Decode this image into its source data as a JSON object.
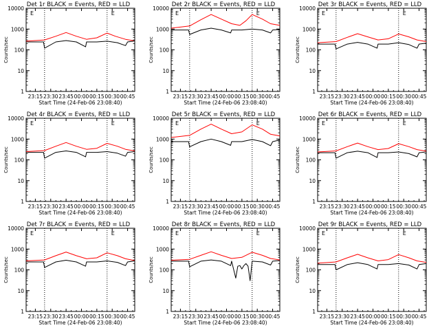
{
  "figure": {
    "background": "#ffffff",
    "colors": {
      "events": "#000000",
      "lld": "#ff0000",
      "axis": "#000000"
    }
  },
  "chart_data": [
    {
      "type": "line",
      "title": "Det 1r BLACK = Events, RED = LLD",
      "xlabel": "Start Time (24-Feb-06 23:08:40)",
      "ylabel": "Counts/sec",
      "yscale": "log",
      "ylim": [
        1,
        10000
      ],
      "yticks": [
        "1",
        "10",
        "100",
        "1000",
        "10000"
      ],
      "xticks": [
        "23:15",
        "23:30",
        "23:45",
        "00:00",
        "00:15",
        "00:30",
        "00:45"
      ],
      "time_min": [
        0,
        15,
        30,
        45,
        60,
        75,
        90
      ],
      "xlim": [
        -9,
        97
      ],
      "vlines": [
        9,
        70
      ],
      "marker_label": "E",
      "marker_t": 74,
      "series": [
        {
          "name": "LLD",
          "color": "#ff0000",
          "t": [
            -9,
            9,
            20,
            30,
            40,
            50,
            60,
            70,
            78,
            88,
            97
          ],
          "values": [
            260,
            300,
            450,
            680,
            450,
            320,
            380,
            640,
            450,
            320,
            270
          ]
        },
        {
          "name": "Events",
          "color": "#000000",
          "t": [
            -9,
            8,
            9,
            20,
            30,
            40,
            49,
            50,
            60,
            70,
            80,
            88,
            90,
            97
          ],
          "values": [
            240,
            240,
            120,
            240,
            280,
            240,
            140,
            240,
            240,
            260,
            220,
            160,
            240,
            270
          ]
        }
      ]
    },
    {
      "type": "line",
      "title": "Det 2r BLACK = Events, RED = LLD",
      "xlabel": "Start Time (24-Feb-06 23:08:40)",
      "ylabel": "Counts/sec",
      "yscale": "log",
      "ylim": [
        1,
        10000
      ],
      "yticks": [
        "1",
        "10",
        "100",
        "1000",
        "10000"
      ],
      "xticks": [
        "23:15",
        "23:30",
        "23:45",
        "00:00",
        "00:15",
        "00:30",
        "00:45"
      ],
      "time_min": [
        0,
        15,
        30,
        45,
        60,
        75,
        90
      ],
      "xlim": [
        -9,
        97
      ],
      "vlines": [
        9,
        70
      ],
      "marker_label": "E",
      "marker_t": 74,
      "series": [
        {
          "name": "LLD",
          "color": "#ff0000",
          "t": [
            -9,
            9,
            20,
            30,
            40,
            50,
            58,
            64,
            70,
            80,
            88,
            97
          ],
          "values": [
            1100,
            1400,
            2800,
            5000,
            3000,
            1800,
            1500,
            2500,
            5000,
            3000,
            1800,
            1500
          ]
        },
        {
          "name": "Events",
          "color": "#000000",
          "t": [
            -9,
            8,
            9,
            20,
            30,
            40,
            49,
            50,
            60,
            70,
            80,
            88,
            90,
            97
          ],
          "values": [
            900,
            900,
            550,
            900,
            1100,
            900,
            650,
            900,
            900,
            1000,
            900,
            650,
            900,
            950
          ]
        }
      ]
    },
    {
      "type": "line",
      "title": "Det 3r BLACK = Events, RED = LLD",
      "xlabel": "Start Time (24-Feb-06 23:08:40)",
      "ylabel": "Counts/sec",
      "yscale": "log",
      "ylim": [
        1,
        10000
      ],
      "yticks": [
        "1",
        "10",
        "100",
        "1000",
        "10000"
      ],
      "xticks": [
        "23:15",
        "23:30",
        "23:45",
        "00:00",
        "00:15",
        "00:30",
        "00:45"
      ],
      "time_min": [
        0,
        15,
        30,
        45,
        60,
        75,
        90
      ],
      "xlim": [
        -9,
        97
      ],
      "vlines": [
        9,
        70
      ],
      "marker_label": "E",
      "marker_t": 74,
      "series": [
        {
          "name": "LLD",
          "color": "#ff0000",
          "t": [
            -9,
            9,
            20,
            30,
            40,
            50,
            60,
            70,
            80,
            88,
            97
          ],
          "values": [
            220,
            250,
            400,
            600,
            420,
            300,
            340,
            580,
            420,
            300,
            250
          ]
        },
        {
          "name": "Events",
          "color": "#000000",
          "t": [
            -9,
            8,
            9,
            20,
            30,
            40,
            49,
            50,
            60,
            70,
            80,
            88,
            90,
            97
          ],
          "values": [
            190,
            190,
            110,
            190,
            230,
            190,
            120,
            190,
            190,
            220,
            180,
            120,
            190,
            210
          ]
        }
      ]
    },
    {
      "type": "line",
      "title": "Det 4r BLACK = Events, RED = LLD",
      "xlabel": "Start Time (24-Feb-06 23:08:40)",
      "ylabel": "Counts/sec",
      "yscale": "log",
      "ylim": [
        1,
        10000
      ],
      "yticks": [
        "1",
        "10",
        "100",
        "1000",
        "10000"
      ],
      "xticks": [
        "23:15",
        "23:30",
        "23:45",
        "00:00",
        "00:15",
        "00:30",
        "00:45"
      ],
      "time_min": [
        0,
        15,
        30,
        45,
        60,
        75,
        90
      ],
      "xlim": [
        -9,
        97
      ],
      "vlines": [
        9,
        70
      ],
      "marker_label": "E",
      "marker_t": 74,
      "series": [
        {
          "name": "LLD",
          "color": "#ff0000",
          "t": [
            -9,
            9,
            20,
            30,
            40,
            50,
            60,
            70,
            80,
            88,
            97
          ],
          "values": [
            250,
            280,
            450,
            680,
            450,
            320,
            360,
            620,
            450,
            320,
            270
          ]
        },
        {
          "name": "Events",
          "color": "#000000",
          "t": [
            -9,
            8,
            9,
            20,
            30,
            40,
            49,
            50,
            60,
            70,
            80,
            88,
            90,
            97
          ],
          "values": [
            230,
            230,
            120,
            230,
            270,
            230,
            140,
            230,
            230,
            250,
            210,
            150,
            230,
            250
          ]
        }
      ]
    },
    {
      "type": "line",
      "title": "Det 5r BLACK = Events, RED = LLD",
      "xlabel": "Start Time (24-Feb-06 23:08:40)",
      "ylabel": "Counts/sec",
      "yscale": "log",
      "ylim": [
        1,
        10000
      ],
      "yticks": [
        "1",
        "10",
        "100",
        "1000",
        "10000"
      ],
      "xticks": [
        "23:15",
        "23:30",
        "23:45",
        "00:00",
        "00:15",
        "00:30",
        "00:45"
      ],
      "time_min": [
        0,
        15,
        30,
        45,
        60,
        75,
        90
      ],
      "xlim": [
        -9,
        97
      ],
      "vlines": [
        9,
        70
      ],
      "marker_label": "E",
      "marker_t": 74,
      "series": [
        {
          "name": "LLD",
          "color": "#ff0000",
          "t": [
            -9,
            9,
            20,
            30,
            40,
            50,
            60,
            70,
            80,
            88,
            97
          ],
          "values": [
            1200,
            1500,
            3000,
            5200,
            3000,
            1800,
            2200,
            4800,
            3000,
            1700,
            1400
          ]
        },
        {
          "name": "Events",
          "color": "#000000",
          "t": [
            -9,
            8,
            9,
            20,
            30,
            40,
            49,
            50,
            60,
            70,
            80,
            88,
            90,
            97
          ],
          "values": [
            750,
            750,
            420,
            750,
            1000,
            750,
            500,
            750,
            750,
            950,
            750,
            480,
            750,
            900
          ]
        }
      ]
    },
    {
      "type": "line",
      "title": "Det 6r BLACK = Events, RED = LLD",
      "xlabel": "Start Time (24-Feb-06 23:08:40)",
      "ylabel": "Counts/sec",
      "yscale": "log",
      "ylim": [
        1,
        10000
      ],
      "yticks": [
        "1",
        "10",
        "100",
        "1000",
        "10000"
      ],
      "xticks": [
        "23:15",
        "23:30",
        "23:45",
        "00:00",
        "00:15",
        "00:30",
        "00:45"
      ],
      "time_min": [
        0,
        15,
        30,
        45,
        60,
        75,
        90
      ],
      "xlim": [
        -9,
        97
      ],
      "vlines": [
        9,
        70
      ],
      "marker_label": "E",
      "marker_t": 74,
      "series": [
        {
          "name": "LLD",
          "color": "#ff0000",
          "t": [
            -9,
            9,
            20,
            30,
            40,
            50,
            60,
            70,
            80,
            88,
            97
          ],
          "values": [
            240,
            270,
            430,
            640,
            430,
            310,
            350,
            600,
            430,
            310,
            260
          ]
        },
        {
          "name": "Events",
          "color": "#000000",
          "t": [
            -9,
            8,
            9,
            20,
            30,
            40,
            49,
            50,
            60,
            70,
            80,
            88,
            90,
            97
          ],
          "values": [
            220,
            220,
            120,
            220,
            260,
            220,
            130,
            220,
            220,
            240,
            200,
            140,
            220,
            240
          ]
        }
      ]
    },
    {
      "type": "line",
      "title": "Det 7r BLACK = Events, RED = LLD",
      "xlabel": "Start Time (24-Feb-06 23:08:40)",
      "ylabel": "Counts/sec",
      "yscale": "log",
      "ylim": [
        1,
        10000
      ],
      "yticks": [
        "1",
        "10",
        "100",
        "1000",
        "10000"
      ],
      "xticks": [
        "23:15",
        "23:30",
        "23:45",
        "00:00",
        "00:15",
        "00:30",
        "00:45"
      ],
      "time_min": [
        0,
        15,
        30,
        45,
        60,
        75,
        90
      ],
      "xlim": [
        -9,
        97
      ],
      "vlines": [
        9,
        70
      ],
      "marker_label": "E",
      "marker_t": 74,
      "series": [
        {
          "name": "LLD",
          "color": "#ff0000",
          "t": [
            -9,
            9,
            20,
            30,
            40,
            50,
            60,
            70,
            80,
            88,
            97
          ],
          "values": [
            270,
            300,
            480,
            720,
            480,
            340,
            380,
            660,
            480,
            340,
            280
          ]
        },
        {
          "name": "Events",
          "color": "#000000",
          "t": [
            -9,
            8,
            9,
            20,
            30,
            40,
            49,
            50,
            60,
            70,
            80,
            88,
            90,
            97
          ],
          "values": [
            240,
            240,
            130,
            240,
            290,
            240,
            150,
            240,
            240,
            270,
            230,
            160,
            240,
            270
          ]
        }
      ]
    },
    {
      "type": "line",
      "title": "Det 8r BLACK = Events, RED = LLD",
      "xlabel": "Start Time (24-Feb-06 23:08:40)",
      "ylabel": "Counts/sec",
      "yscale": "log",
      "ylim": [
        1,
        10000
      ],
      "yticks": [
        "1",
        "10",
        "100",
        "1000",
        "10000"
      ],
      "xticks": [
        "23:15",
        "23:30",
        "23:45",
        "00:00",
        "00:15",
        "00:30",
        "00:45"
      ],
      "time_min": [
        0,
        15,
        30,
        45,
        60,
        75,
        90
      ],
      "xlim": [
        -9,
        97
      ],
      "vlines": [
        9,
        70
      ],
      "marker_label": "E",
      "marker_t": 74,
      "series": [
        {
          "name": "LLD",
          "color": "#ff0000",
          "t": [
            -9,
            9,
            20,
            30,
            40,
            50,
            60,
            70,
            80,
            88,
            97
          ],
          "values": [
            290,
            320,
            500,
            740,
            500,
            350,
            400,
            700,
            500,
            350,
            300
          ]
        },
        {
          "name": "Events",
          "color": "#000000",
          "t": [
            -9,
            8,
            9,
            20,
            30,
            40,
            49,
            50,
            54,
            56,
            58,
            60,
            62,
            64,
            66,
            68,
            70,
            80,
            88,
            90,
            97
          ],
          "values": [
            260,
            260,
            140,
            260,
            300,
            260,
            160,
            260,
            40,
            150,
            160,
            110,
            160,
            200,
            150,
            30,
            260,
            240,
            170,
            260,
            280
          ]
        }
      ]
    },
    {
      "type": "line",
      "title": "Det 9r BLACK = Events, RED = LLD",
      "xlabel": "Start Time (24-Feb-06 23:08:40)",
      "ylabel": "Counts/sec",
      "yscale": "log",
      "ylim": [
        1,
        10000
      ],
      "yticks": [
        "1",
        "10",
        "100",
        "1000",
        "10000"
      ],
      "xticks": [
        "23:15",
        "23:30",
        "23:45",
        "00:00",
        "00:15",
        "00:30",
        "00:45"
      ],
      "time_min": [
        0,
        15,
        30,
        45,
        60,
        75,
        90
      ],
      "xlim": [
        -9,
        97
      ],
      "vlines": [
        9,
        70
      ],
      "marker_label": "E",
      "marker_t": 74,
      "series": [
        {
          "name": "LLD",
          "color": "#ff0000",
          "t": [
            -9,
            9,
            20,
            30,
            40,
            50,
            60,
            70,
            80,
            88,
            97
          ],
          "values": [
            210,
            240,
            380,
            560,
            380,
            270,
            310,
            540,
            380,
            270,
            230
          ]
        },
        {
          "name": "Events",
          "color": "#000000",
          "t": [
            -9,
            8,
            9,
            20,
            30,
            40,
            49,
            50,
            60,
            70,
            80,
            88,
            90,
            97
          ],
          "values": [
            180,
            180,
            100,
            180,
            220,
            180,
            110,
            180,
            180,
            200,
            170,
            110,
            180,
            200
          ]
        }
      ]
    }
  ]
}
